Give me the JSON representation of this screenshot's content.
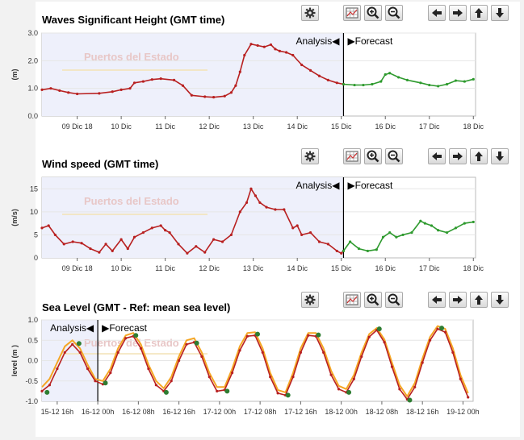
{
  "charts": [
    {
      "id": "waves",
      "title": "Waves Significant Height (GMT time)",
      "ylabel": "(m)",
      "analysis_label": "Analysis◀",
      "forecast_label": "▶Forecast",
      "watermark": "Puertos del Estado"
    },
    {
      "id": "wind",
      "title": "Wind speed (GMT time)",
      "ylabel": "(m/s)",
      "analysis_label": "Analysis◀",
      "forecast_label": "▶Forecast",
      "watermark": "Puertos del Estado"
    },
    {
      "id": "sealevel",
      "title": "Sea Level (GMT - Ref: mean sea level)",
      "ylabel": "level (m )",
      "analysis_label": "Analysis◀",
      "forecast_label": "▶Forecast",
      "watermark": "Puertos del Estado"
    }
  ],
  "toolbar": {
    "icons": [
      "gear-icon",
      "grid-icon",
      "zoom-in-icon",
      "zoom-out-icon",
      "arrow-left-icon",
      "arrow-right-icon",
      "arrow-up-icon",
      "arrow-down-icon"
    ]
  },
  "colors": {
    "analysis": "#b82020",
    "forecast": "#2e9a2e",
    "analysis_bg": "#eef0fb",
    "sea_level_orange": "#f5a623",
    "sea_level_marker": "#2e7d32"
  },
  "chart_data": [
    {
      "type": "line",
      "title": "Waves Significant Height (GMT time)",
      "ylabel": "(m)",
      "x_unit": "days from 09 Dic 18 00:00",
      "categories": [
        "09 Dic 18",
        "10 Dic",
        "11 Dic",
        "12 Dic",
        "13 Dic",
        "14 Dic",
        "15 Dic",
        "16 Dic",
        "17 Dic",
        "18 Dic"
      ],
      "xlim": [
        -0.3,
        9.55
      ],
      "ylim": [
        0,
        3
      ],
      "yticks": [
        "0.0",
        "1.0",
        "2.0",
        "3.0"
      ],
      "analysis_end": 6.55,
      "series": [
        {
          "name": "Analysis",
          "x": [
            -0.3,
            -0.1,
            0.1,
            0.3,
            0.5,
            1.0,
            1.3,
            1.5,
            1.7,
            1.8,
            2.0,
            2.2,
            2.4,
            2.7,
            2.9,
            3.1,
            3.4,
            3.6,
            3.85,
            4.0,
            4.1,
            4.2,
            4.3,
            4.45,
            4.6,
            4.75,
            4.9,
            5.0,
            5.1,
            5.25,
            5.4,
            5.6,
            5.8,
            6.0,
            6.2,
            6.4,
            6.55
          ],
          "y": [
            0.95,
            1.0,
            0.92,
            0.85,
            0.8,
            0.82,
            0.88,
            0.95,
            1.0,
            1.2,
            1.25,
            1.32,
            1.35,
            1.3,
            1.1,
            0.75,
            0.7,
            0.68,
            0.72,
            0.85,
            1.1,
            1.6,
            2.2,
            2.6,
            2.55,
            2.5,
            2.58,
            2.42,
            2.35,
            2.3,
            2.2,
            1.85,
            1.65,
            1.45,
            1.3,
            1.2,
            1.15
          ]
        },
        {
          "name": "Forecast",
          "x": [
            6.55,
            6.8,
            7.0,
            7.2,
            7.4,
            7.5,
            7.6,
            7.8,
            8.0,
            8.3,
            8.5,
            8.7,
            8.9,
            9.1,
            9.3,
            9.5
          ],
          "y": [
            1.15,
            1.12,
            1.12,
            1.15,
            1.25,
            1.5,
            1.55,
            1.4,
            1.3,
            1.2,
            1.12,
            1.08,
            1.15,
            1.28,
            1.25,
            1.33
          ]
        }
      ]
    },
    {
      "type": "line",
      "title": "Wind speed (GMT time)",
      "ylabel": "(m/s)",
      "x_unit": "days from 09 Dic 18 00:00",
      "categories": [
        "09 Dic 18",
        "10 Dic",
        "11 Dic",
        "12 Dic",
        "13 Dic",
        "14 Dic",
        "15 Dic",
        "16 Dic",
        "17 Dic",
        "18 Dic"
      ],
      "xlim": [
        -0.3,
        9.55
      ],
      "ylim": [
        0,
        17.5
      ],
      "yticks": [
        "0",
        "5",
        "10",
        "15"
      ],
      "analysis_end": 6.55,
      "series": [
        {
          "name": "Analysis",
          "x": [
            -0.3,
            -0.15,
            0.0,
            0.2,
            0.4,
            0.6,
            0.8,
            1.0,
            1.15,
            1.3,
            1.5,
            1.65,
            1.8,
            2.0,
            2.2,
            2.4,
            2.5,
            2.6,
            2.8,
            3.0,
            3.2,
            3.4,
            3.6,
            3.8,
            4.0,
            4.2,
            4.35,
            4.45,
            4.55,
            4.65,
            4.8,
            5.0,
            5.2,
            5.4,
            5.5,
            5.6,
            5.8,
            6.0,
            6.2,
            6.4,
            6.5,
            6.55
          ],
          "y": [
            6.5,
            7.0,
            5.0,
            3.0,
            3.5,
            3.2,
            2.0,
            1.2,
            3.0,
            1.5,
            4.0,
            2.0,
            4.5,
            5.5,
            6.5,
            7.0,
            6.0,
            5.5,
            3.0,
            1.0,
            2.5,
            1.2,
            4.0,
            3.5,
            5.0,
            10.0,
            12.0,
            15.0,
            13.5,
            12.0,
            11.0,
            10.5,
            10.5,
            6.5,
            7.0,
            5.0,
            5.5,
            3.5,
            3.0,
            1.5,
            1.0,
            1.5
          ]
        },
        {
          "name": "Forecast",
          "x": [
            6.55,
            6.7,
            6.9,
            7.1,
            7.3,
            7.45,
            7.6,
            7.75,
            7.9,
            8.1,
            8.3,
            8.4,
            8.55,
            8.7,
            8.9,
            9.1,
            9.3,
            9.5
          ],
          "y": [
            1.5,
            3.5,
            2.0,
            1.5,
            1.8,
            4.5,
            5.5,
            4.5,
            5.0,
            5.5,
            8.0,
            7.5,
            7.0,
            6.0,
            5.5,
            6.5,
            7.5,
            7.8
          ]
        }
      ]
    },
    {
      "type": "line",
      "title": "Sea Level (GMT - Ref: mean sea level)",
      "ylabel": "level (m )",
      "x_unit": "hours from 15-12 16h",
      "categories": [
        "15-12 16h",
        "16-12 00h",
        "16-12 08h",
        "16-12 16h",
        "17-12 00h",
        "17-12 08h",
        "17-12 16h",
        "18-12 00h",
        "18-12 08h",
        "18-12 16h",
        "19-12 00h"
      ],
      "xlim": [
        -3,
        82
      ],
      "ylim": [
        -1,
        1
      ],
      "yticks": [
        "-1.0",
        "-0.5",
        "0.0",
        "0.5",
        "1.0"
      ],
      "analysis_end": 8,
      "series": [
        {
          "name": "Analysis/Forecast (red)",
          "x": [
            -3,
            -1.5,
            0,
            1.5,
            3,
            4.5,
            6,
            7.5,
            9,
            10.5,
            12,
            13.5,
            15,
            16.5,
            18,
            19.5,
            21,
            22.5,
            24,
            25.5,
            27,
            28.5,
            30,
            31.5,
            33,
            34.5,
            36,
            37.5,
            39,
            40.5,
            42,
            43.5,
            45,
            46.5,
            48,
            49.5,
            51,
            52.5,
            54,
            55.5,
            57,
            58.5,
            60,
            61.5,
            63,
            64.5,
            66,
            67.5,
            69,
            70.5,
            72,
            73.5,
            75,
            76.5,
            78,
            79.5,
            81
          ],
          "y": [
            -0.75,
            -0.6,
            -0.2,
            0.2,
            0.4,
            0.2,
            -0.2,
            -0.5,
            -0.58,
            -0.3,
            0.2,
            0.55,
            0.6,
            0.3,
            -0.2,
            -0.6,
            -0.75,
            -0.5,
            0.0,
            0.4,
            0.45,
            0.1,
            -0.4,
            -0.75,
            -0.72,
            -0.3,
            0.25,
            0.6,
            0.62,
            0.2,
            -0.4,
            -0.8,
            -0.85,
            -0.4,
            0.2,
            0.62,
            0.6,
            0.2,
            -0.35,
            -0.7,
            -0.78,
            -0.45,
            0.1,
            0.58,
            0.75,
            0.45,
            -0.15,
            -0.7,
            -0.95,
            -0.65,
            -0.05,
            0.5,
            0.78,
            0.7,
            0.2,
            -0.45,
            -0.9
          ]
        },
        {
          "name": "Forecast (orange)",
          "x": [
            -3,
            -1.5,
            0,
            1.5,
            3,
            4.5,
            6,
            7.5,
            9,
            10.5,
            12,
            13.5,
            15,
            16.5,
            18,
            19.5,
            21,
            22.5,
            24,
            25.5,
            27,
            28.5,
            30,
            31.5,
            33,
            34.5,
            36,
            37.5,
            39,
            40.5,
            42,
            43.5,
            45,
            46.5,
            48,
            49.5,
            51,
            52.5,
            54,
            55.5,
            57,
            58.5,
            60,
            61.5,
            63,
            64.5,
            66,
            67.5,
            69,
            70.5,
            72,
            73.5,
            75,
            76.5,
            78,
            79.5,
            81
          ],
          "y": [
            -0.65,
            -0.45,
            -0.05,
            0.35,
            0.5,
            0.3,
            -0.1,
            -0.45,
            -0.5,
            -0.2,
            0.3,
            0.62,
            0.68,
            0.4,
            -0.1,
            -0.5,
            -0.68,
            -0.4,
            0.1,
            0.5,
            0.55,
            0.2,
            -0.3,
            -0.65,
            -0.65,
            -0.2,
            0.35,
            0.68,
            0.7,
            0.3,
            -0.3,
            -0.72,
            -0.78,
            -0.3,
            0.3,
            0.68,
            0.68,
            0.3,
            -0.25,
            -0.62,
            -0.7,
            -0.35,
            0.2,
            0.65,
            0.8,
            0.52,
            -0.05,
            -0.6,
            -0.88,
            -0.55,
            0.05,
            0.58,
            0.85,
            0.78,
            0.3,
            -0.35,
            -0.8
          ]
        },
        {
          "name": "Extremes (markers)",
          "x": [
            -2,
            4.3,
            9.5,
            15.5,
            21.5,
            27.5,
            33.5,
            39.5,
            45.5,
            51.5,
            57.5,
            63.5,
            69.5,
            75.8
          ],
          "y": [
            -0.78,
            0.42,
            -0.55,
            0.62,
            -0.78,
            0.43,
            -0.75,
            0.65,
            -0.85,
            0.63,
            -0.78,
            0.78,
            -0.97,
            0.8
          ]
        }
      ]
    }
  ]
}
